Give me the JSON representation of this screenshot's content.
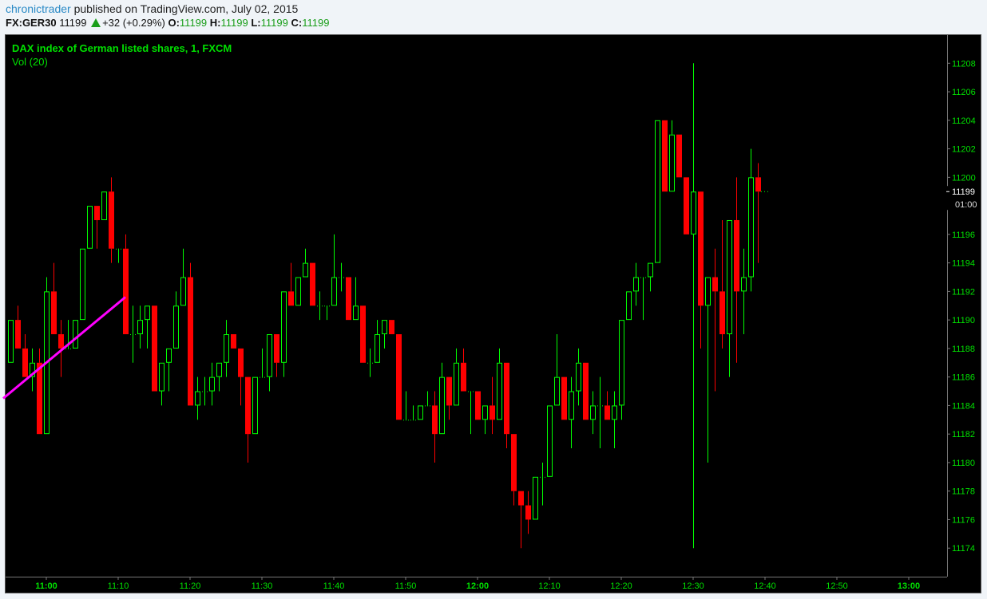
{
  "header": {
    "author": "chronictrader",
    "published": "published on TradingView.com, July 02, 2015",
    "symbol": "FX:GER30",
    "last": "11199",
    "change": "+32 (+0.29%)",
    "change_direction_icon": "triangle-up-icon",
    "o_label": "O:",
    "o": "11199",
    "h_label": "H:",
    "h": "11199",
    "l_label": "L:",
    "l": "11199",
    "c_label": "C:",
    "c": "11199"
  },
  "legend": {
    "title": "DAX index of German listed shares, 1, FXCM",
    "indicator": "Vol (20)"
  },
  "colors": {
    "background": "#000000",
    "up": "#00ff00",
    "down": "#ff0000",
    "axis_text": "#00e000",
    "trendline": "#ff00ff",
    "author": "#2a8ac6"
  },
  "chart_data": {
    "type": "candlestick",
    "interval": "1 minute",
    "yticks": [
      "11174",
      "11176",
      "11178",
      "11180",
      "11182",
      "11184",
      "11186",
      "11188",
      "11190",
      "11192",
      "11194",
      "11196",
      "11200",
      "11202",
      "11204",
      "11206",
      "11208"
    ],
    "ylim": [
      11172,
      11210
    ],
    "xticks": [
      {
        "t": "11:00",
        "bold": true
      },
      {
        "t": "11:10"
      },
      {
        "t": "11:20"
      },
      {
        "t": "11:30"
      },
      {
        "t": "11:40"
      },
      {
        "t": "11:50"
      },
      {
        "t": "12:00",
        "bold": true
      },
      {
        "t": "12:10"
      },
      {
        "t": "12:20"
      },
      {
        "t": "12:30"
      },
      {
        "t": "12:40"
      },
      {
        "t": "12:50"
      },
      {
        "t": "13:00",
        "bold": true
      }
    ],
    "current_price": "11199",
    "countdown": "01:00",
    "trendline": [
      [
        "10:54",
        11184.5
      ],
      [
        "11:11",
        11191.6
      ]
    ],
    "candles_columns": [
      "time",
      "open",
      "high",
      "low",
      "close"
    ],
    "candles": [
      [
        "10:55",
        11187,
        11190,
        11187,
        11190
      ],
      [
        "10:56",
        11190,
        11191,
        11188,
        11188
      ],
      [
        "10:57",
        11188,
        11189,
        11186,
        11186
      ],
      [
        "10:58",
        11186,
        11188,
        11185,
        11187
      ],
      [
        "10:59",
        11187,
        11188,
        11182,
        11182
      ],
      [
        "11:00",
        11182,
        11193,
        11182,
        11192
      ],
      [
        "11:01",
        11192,
        11194,
        11189,
        11189
      ],
      [
        "11:02",
        11189,
        11190,
        11186,
        11188
      ],
      [
        "11:03",
        11188,
        11190,
        11188,
        11188
      ],
      [
        "11:04",
        11188,
        11190,
        11188,
        11190
      ],
      [
        "11:05",
        11190,
        11195,
        11190,
        11195
      ],
      [
        "11:06",
        11195,
        11198,
        11195,
        11198
      ],
      [
        "11:07",
        11198,
        11198,
        11195,
        11197
      ],
      [
        "11:08",
        11197,
        11199,
        11197,
        11199
      ],
      [
        "11:09",
        11199,
        11200,
        11194,
        11195
      ],
      [
        "11:10",
        11195,
        11195,
        11194,
        11195
      ],
      [
        "11:11",
        11195,
        11196,
        11189,
        11189
      ],
      [
        "11:12",
        11189,
        11191,
        11187,
        11189
      ],
      [
        "11:13",
        11189,
        11191,
        11188,
        11190
      ],
      [
        "11:14",
        11190,
        11191,
        11188,
        11191
      ],
      [
        "11:15",
        11191,
        11191,
        11185,
        11185
      ],
      [
        "11:16",
        11185,
        11187,
        11184,
        11187
      ],
      [
        "11:17",
        11187,
        11188,
        11185,
        11188
      ],
      [
        "11:18",
        11188,
        11192,
        11188,
        11191
      ],
      [
        "11:19",
        11191,
        11195,
        11191,
        11193
      ],
      [
        "11:20",
        11193,
        11194,
        11184,
        11184
      ],
      [
        "11:21",
        11184,
        11186,
        11183,
        11185
      ],
      [
        "11:22",
        11185,
        11186,
        11184,
        11185
      ],
      [
        "11:23",
        11185,
        11187,
        11184,
        11186
      ],
      [
        "11:24",
        11186,
        11187,
        11185,
        11187
      ],
      [
        "11:25",
        11187,
        11190,
        11186,
        11189
      ],
      [
        "11:26",
        11189,
        11189,
        11188,
        11188
      ],
      [
        "11:27",
        11188,
        11188,
        11184,
        11186
      ],
      [
        "11:28",
        11186,
        11186,
        11180,
        11182
      ],
      [
        "11:29",
        11182,
        11186,
        11182,
        11186
      ],
      [
        "11:30",
        11186,
        11188,
        11186,
        11186
      ],
      [
        "11:31",
        11186,
        11189,
        11185,
        11189
      ],
      [
        "11:32",
        11189,
        11189,
        11186,
        11187
      ],
      [
        "11:33",
        11187,
        11192,
        11186,
        11192
      ],
      [
        "11:34",
        11192,
        11194,
        11191,
        11191
      ],
      [
        "11:35",
        11191,
        11193,
        11191,
        11193
      ],
      [
        "11:36",
        11193,
        11195,
        11193,
        11194
      ],
      [
        "11:37",
        11194,
        11194,
        11191,
        11191
      ],
      [
        "11:38",
        11191,
        11192,
        11190,
        11191
      ],
      [
        "11:39",
        11191,
        11191,
        11190,
        11191
      ],
      [
        "11:40",
        11191,
        11196,
        11191,
        11193
      ],
      [
        "11:41",
        11193,
        11194,
        11192,
        11193
      ],
      [
        "11:42",
        11193,
        11193,
        11190,
        11190
      ],
      [
        "11:43",
        11190,
        11193,
        11190,
        11191
      ],
      [
        "11:44",
        11191,
        11191,
        11187,
        11187
      ],
      [
        "11:45",
        11187,
        11188,
        11186,
        11187
      ],
      [
        "11:46",
        11187,
        11190,
        11187,
        11189
      ],
      [
        "11:47",
        11189,
        11190,
        11188,
        11190
      ],
      [
        "11:48",
        11190,
        11190,
        11189,
        11189
      ],
      [
        "11:49",
        11189,
        11189,
        11183,
        11183
      ],
      [
        "11:50",
        11183,
        11185,
        11183,
        11183
      ],
      [
        "11:51",
        11183,
        11184,
        11183,
        11183
      ],
      [
        "11:52",
        11183,
        11184,
        11183,
        11184
      ],
      [
        "11:53",
        11184,
        11185,
        11184,
        11184
      ],
      [
        "11:54",
        11184,
        11185,
        11180,
        11182
      ],
      [
        "11:55",
        11182,
        11187,
        11182,
        11186
      ],
      [
        "11:56",
        11186,
        11186,
        11183,
        11184
      ],
      [
        "11:57",
        11184,
        11188,
        11184,
        11187
      ],
      [
        "11:58",
        11187,
        11188,
        11185,
        11185
      ],
      [
        "11:59",
        11185,
        11185,
        11182,
        11185
      ],
      [
        "12:00",
        11185,
        11185,
        11183,
        11183
      ],
      [
        "12:01",
        11183,
        11184,
        11182,
        11184
      ],
      [
        "12:02",
        11184,
        11186,
        11182,
        11183
      ],
      [
        "12:03",
        11183,
        11188,
        11183,
        11187
      ],
      [
        "12:04",
        11187,
        11187,
        11181,
        11182
      ],
      [
        "12:05",
        11182,
        11182,
        11177,
        11178
      ],
      [
        "12:06",
        11178,
        11178,
        11174,
        11177
      ],
      [
        "12:07",
        11177,
        11178,
        11175,
        11176
      ],
      [
        "12:08",
        11176,
        11179,
        11176,
        11179
      ],
      [
        "12:09",
        11179,
        11180,
        11177,
        11179
      ],
      [
        "12:10",
        11179,
        11184,
        11179,
        11184
      ],
      [
        "12:11",
        11184,
        11189,
        11184,
        11186
      ],
      [
        "12:12",
        11186,
        11186,
        11183,
        11183
      ],
      [
        "12:13",
        11183,
        11186,
        11181,
        11185
      ],
      [
        "12:14",
        11185,
        11188,
        11184,
        11187
      ],
      [
        "12:15",
        11187,
        11187,
        11183,
        11183
      ],
      [
        "12:16",
        11183,
        11185,
        11182,
        11184
      ],
      [
        "12:17",
        11184,
        11186,
        11181,
        11184
      ],
      [
        "12:18",
        11184,
        11185,
        11183,
        11183
      ],
      [
        "12:19",
        11183,
        11185,
        11181,
        11184
      ],
      [
        "12:20",
        11184,
        11190,
        11183,
        11190
      ],
      [
        "12:21",
        11190,
        11192,
        11190,
        11192
      ],
      [
        "12:22",
        11192,
        11194,
        11191,
        11193
      ],
      [
        "12:23",
        11193,
        11193,
        11190,
        11193
      ],
      [
        "12:24",
        11193,
        11194,
        11192,
        11194
      ],
      [
        "12:25",
        11194,
        11204,
        11194,
        11204
      ],
      [
        "12:26",
        11204,
        11204,
        11199,
        11199
      ],
      [
        "12:27",
        11199,
        11204,
        11199,
        11203
      ],
      [
        "12:28",
        11203,
        11203,
        11200,
        11200
      ],
      [
        "12:29",
        11200,
        11200,
        11196,
        11196
      ],
      [
        "12:30",
        11196,
        11208,
        11174,
        11199
      ],
      [
        "12:31",
        11199,
        11199,
        11188,
        11191
      ],
      [
        "12:32",
        11191,
        11193,
        11180,
        11193
      ],
      [
        "12:33",
        11193,
        11195,
        11185,
        11192
      ],
      [
        "12:34",
        11192,
        11197,
        11188,
        11189
      ],
      [
        "12:35",
        11189,
        11197,
        11186,
        11197
      ],
      [
        "12:36",
        11197,
        11200,
        11187,
        11192
      ],
      [
        "12:37",
        11192,
        11195,
        11189,
        11193
      ],
      [
        "12:38",
        11193,
        11202,
        11192,
        11200
      ],
      [
        "12:39",
        11200,
        11201,
        11194,
        11199
      ]
    ]
  }
}
